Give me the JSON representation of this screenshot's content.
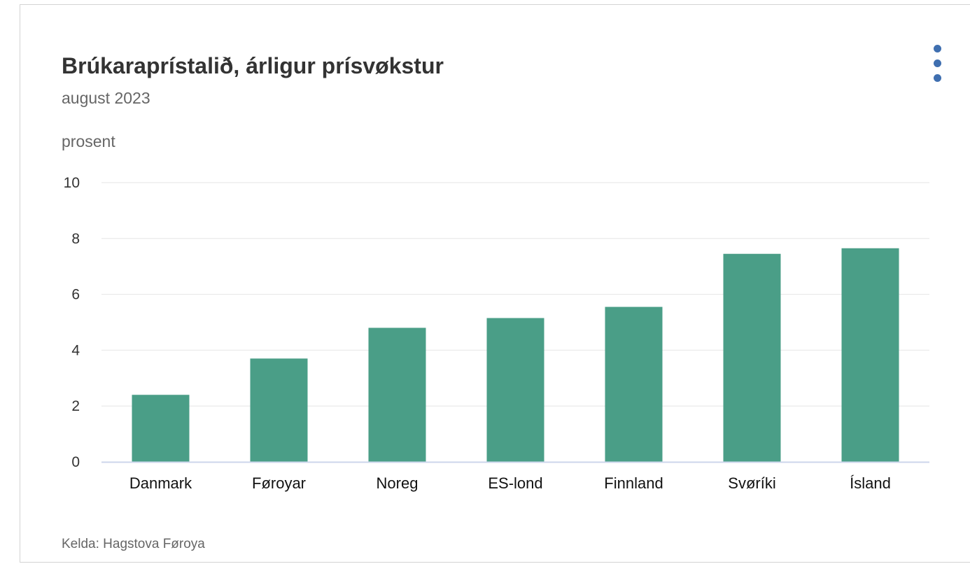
{
  "menu": {
    "icon": "more-vertical-icon"
  },
  "chart_data": {
    "type": "bar",
    "title": "Brúkaraprístalið, árligur prísvøkstur",
    "subtitle": "august 2023",
    "ylabel": "prosent",
    "xlabel": "",
    "source": "Kelda: Hagstova Føroya",
    "categories": [
      "Danmark",
      "Føroyar",
      "Noreg",
      "ES-lond",
      "Finnland",
      "Svøríki",
      "Ísland"
    ],
    "values": [
      2.4,
      3.7,
      4.8,
      5.15,
      5.55,
      7.45,
      7.65
    ],
    "ylim": [
      0,
      10
    ],
    "yticks": [
      "0",
      "2",
      "4",
      "6",
      "8",
      "10"
    ],
    "grid": true,
    "legend": "none",
    "bar_color": "#4a9e87",
    "grid_color": "#e6e6e6",
    "axis_color": "#ccd6eb"
  }
}
